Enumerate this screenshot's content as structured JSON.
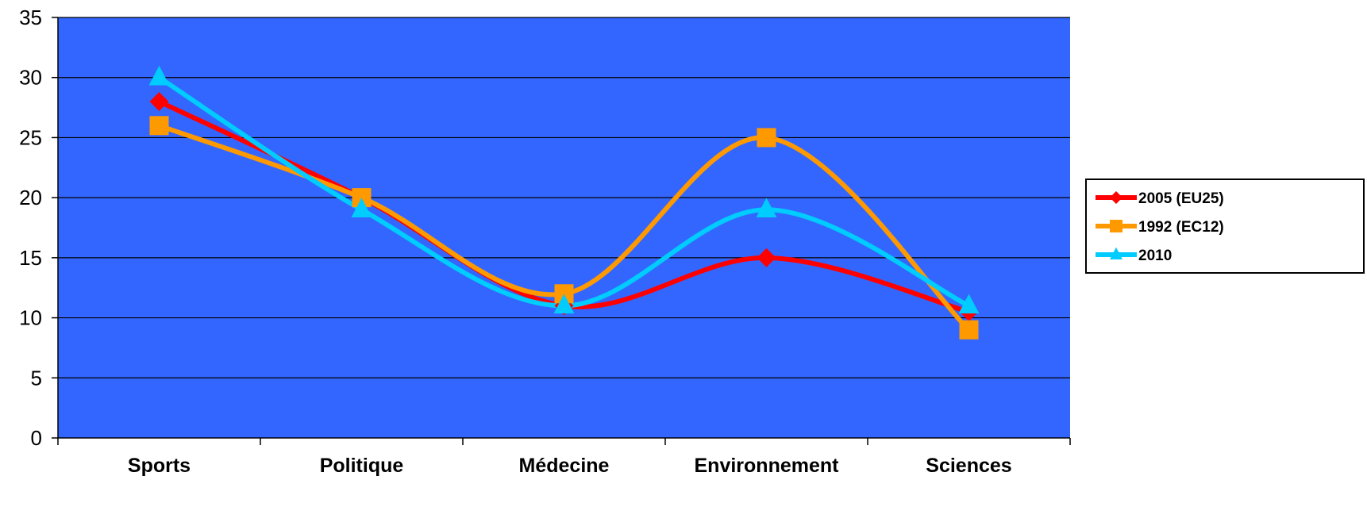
{
  "chart_data": {
    "type": "line",
    "title": "",
    "xlabel": "",
    "ylabel": "",
    "categories": [
      "Sports",
      "Politique",
      "Médecine",
      "Environnement",
      "Sciences"
    ],
    "ylim": [
      0,
      35
    ],
    "yticks": [
      0,
      5,
      10,
      15,
      20,
      25,
      30,
      35
    ],
    "grid": true,
    "smooth": true,
    "legend_position": "right",
    "plot_background": "#3366FF",
    "series": [
      {
        "name": "2005 (EU25)",
        "values": [
          28,
          20,
          11,
          15,
          10.5
        ],
        "color": "#FF0000",
        "marker": "diamond"
      },
      {
        "name": "1992 (EC12)",
        "values": [
          26,
          20,
          12,
          25,
          9
        ],
        "color": "#FF9900",
        "marker": "square"
      },
      {
        "name": "2010",
        "values": [
          30,
          19,
          11,
          19,
          11
        ],
        "color": "#00CCFF",
        "marker": "triangle"
      }
    ]
  }
}
